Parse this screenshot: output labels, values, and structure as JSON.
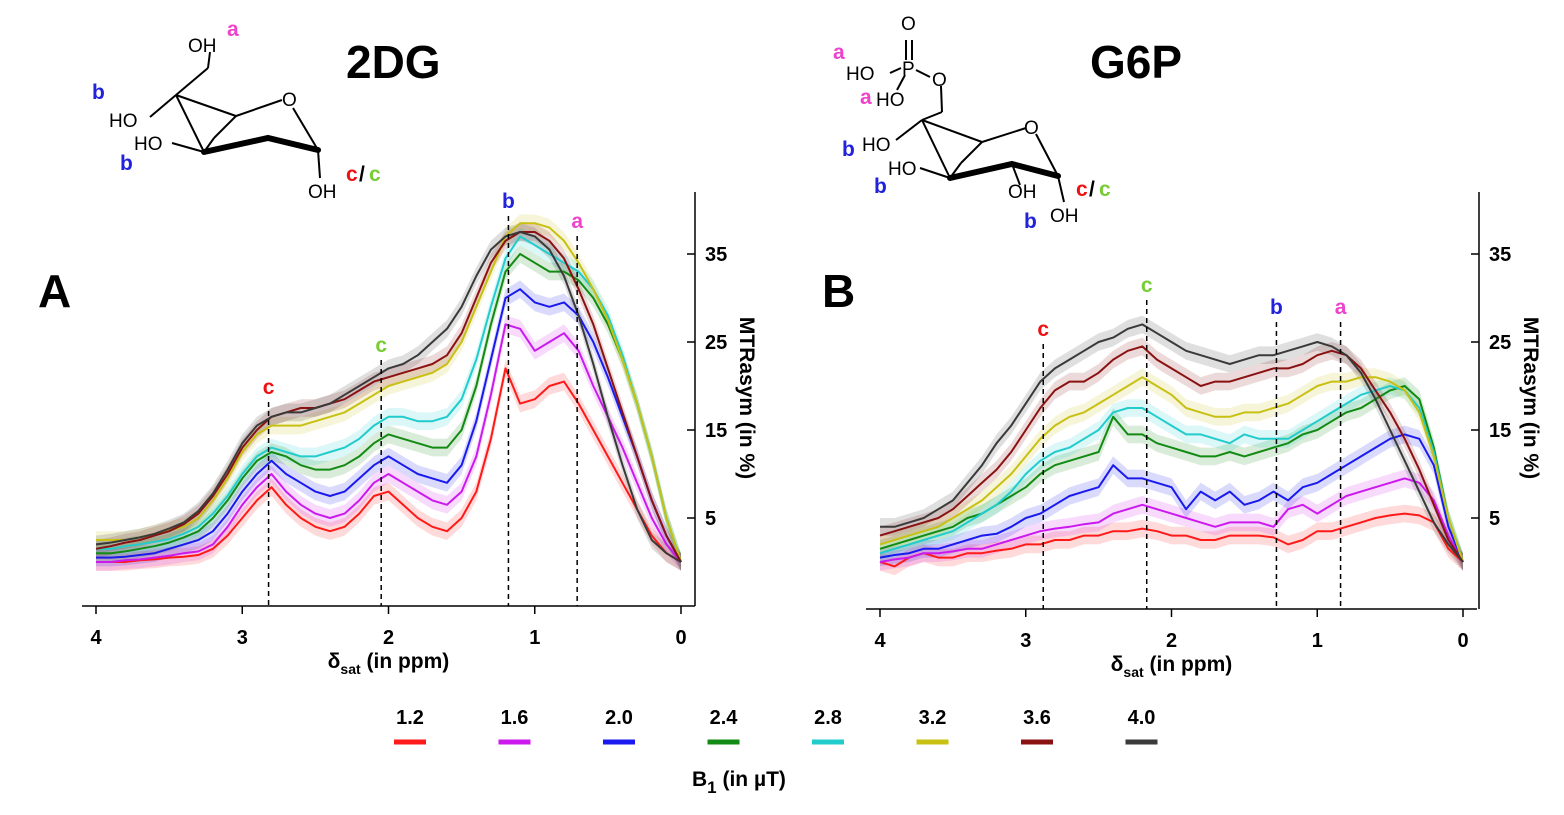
{
  "colors": {
    "1.2": "#ff1a1a",
    "1.6": "#cc1aee",
    "2.0": "#1a1aee",
    "2.4": "#138a13",
    "2.8": "#22cccc",
    "3.2": "#c8c012",
    "3.6": "#8a1212",
    "4.0": "#3a3a3a",
    "peak_a": "#ee44cc",
    "peak_b": "#2222dd",
    "peak_c_red": "#ee1111",
    "peak_c_green": "#77cc33"
  },
  "legend": {
    "title": "B",
    "title_sub": "1",
    "title_unit": " (in µT)",
    "items": [
      "1.2",
      "1.6",
      "2.0",
      "2.4",
      "2.8",
      "3.2",
      "3.6",
      "4.0"
    ]
  },
  "structures": {
    "left": {
      "oh_labels": [
        "OH",
        "HO",
        "HO",
        "OH"
      ],
      "ring_o": "O",
      "slash": "/"
    },
    "right": {
      "oh_labels": [
        "HO",
        "HO",
        "HO",
        "HO",
        "OH",
        "OH"
      ],
      "atom_labels": [
        "O",
        "P",
        "O",
        "O"
      ],
      "slash": "/"
    }
  },
  "chart_data": [
    {
      "type": "line",
      "panel": "A",
      "title": "2DG",
      "xlabel": "δ",
      "xlabel_sub": "sat",
      "xlabel_unit": " (in ppm)",
      "ylabel": "MTRasym (in %)",
      "xlim": [
        4,
        0
      ],
      "ylim": [
        -3,
        40
      ],
      "xticks": [
        "4",
        "3",
        "2",
        "1",
        "0"
      ],
      "yticks": [
        "5",
        "15",
        "25",
        "35"
      ],
      "x": [
        4.0,
        3.9,
        3.8,
        3.7,
        3.6,
        3.5,
        3.4,
        3.3,
        3.2,
        3.1,
        3.0,
        2.9,
        2.8,
        2.7,
        2.6,
        2.5,
        2.4,
        2.3,
        2.2,
        2.1,
        2.0,
        1.9,
        1.8,
        1.7,
        1.6,
        1.5,
        1.4,
        1.3,
        1.2,
        1.1,
        1.0,
        0.9,
        0.8,
        0.7,
        0.6,
        0.5,
        0.4,
        0.3,
        0.2,
        0.1,
        0.0
      ],
      "series": [
        {
          "name": "1.2",
          "values": [
            0.0,
            0.0,
            0.0,
            0.2,
            0.3,
            0.5,
            0.6,
            0.8,
            1.5,
            3.0,
            5.0,
            7.0,
            8.5,
            6.5,
            5.0,
            4.0,
            3.5,
            4.0,
            5.5,
            7.5,
            8.0,
            6.5,
            5.0,
            4.0,
            3.5,
            5.0,
            8.0,
            14.0,
            22.0,
            18.0,
            18.5,
            20.0,
            20.5,
            18.0,
            15.0,
            12.0,
            9.0,
            6.0,
            3.0,
            1.0,
            0.0
          ]
        },
        {
          "name": "1.6",
          "values": [
            0.0,
            0.0,
            0.2,
            0.3,
            0.5,
            0.7,
            1.0,
            1.2,
            2.0,
            4.0,
            6.5,
            8.5,
            10.0,
            8.0,
            6.5,
            5.5,
            5.0,
            5.5,
            7.0,
            9.0,
            10.0,
            9.0,
            8.0,
            7.0,
            6.5,
            8.0,
            12.0,
            19.0,
            27.0,
            26.5,
            24.0,
            25.0,
            26.0,
            24.0,
            20.0,
            16.5,
            13.0,
            9.0,
            5.0,
            2.0,
            0.0
          ]
        },
        {
          "name": "2.0",
          "values": [
            0.5,
            0.5,
            0.6,
            0.8,
            1.0,
            1.5,
            2.0,
            2.5,
            3.5,
            5.5,
            8.0,
            10.0,
            11.5,
            10.0,
            9.0,
            8.0,
            7.5,
            8.0,
            9.5,
            11.0,
            12.0,
            11.0,
            10.0,
            9.5,
            9.0,
            11.0,
            16.0,
            23.0,
            30.0,
            31.0,
            29.5,
            29.0,
            29.5,
            28.0,
            25.0,
            21.0,
            16.5,
            12.0,
            7.0,
            3.0,
            0.0
          ]
        },
        {
          "name": "2.4",
          "values": [
            1.0,
            1.0,
            1.2,
            1.5,
            1.8,
            2.2,
            2.8,
            3.5,
            5.0,
            7.0,
            9.5,
            11.5,
            12.5,
            12.0,
            11.0,
            10.5,
            10.5,
            11.0,
            12.0,
            13.5,
            14.5,
            14.0,
            13.5,
            13.0,
            13.0,
            15.0,
            20.0,
            27.0,
            33.0,
            35.0,
            34.0,
            33.0,
            33.0,
            32.0,
            30.0,
            27.0,
            23.0,
            18.0,
            12.0,
            5.0,
            0.0
          ]
        },
        {
          "name": "2.8",
          "values": [
            1.5,
            1.5,
            1.8,
            2.0,
            2.3,
            2.6,
            3.2,
            4.0,
            5.5,
            7.5,
            10.0,
            12.0,
            13.0,
            12.5,
            12.0,
            12.0,
            12.5,
            13.0,
            14.0,
            15.5,
            16.5,
            16.5,
            16.0,
            16.0,
            16.5,
            18.5,
            23.0,
            29.0,
            34.5,
            37.0,
            36.0,
            35.0,
            34.0,
            33.0,
            31.0,
            28.0,
            23.5,
            18.0,
            12.0,
            5.0,
            0.0
          ]
        },
        {
          "name": "3.2",
          "values": [
            2.5,
            2.5,
            2.5,
            2.8,
            3.2,
            3.6,
            4.0,
            5.0,
            7.0,
            9.5,
            12.5,
            14.5,
            15.5,
            15.5,
            15.5,
            16.0,
            16.5,
            17.0,
            18.0,
            19.0,
            20.0,
            20.5,
            21.0,
            21.5,
            22.5,
            25.0,
            29.0,
            33.0,
            37.0,
            38.5,
            38.5,
            38.0,
            36.5,
            34.0,
            31.0,
            27.5,
            23.0,
            18.0,
            12.0,
            5.0,
            0.0
          ]
        },
        {
          "name": "3.6",
          "values": [
            1.5,
            1.8,
            2.2,
            2.5,
            3.0,
            3.5,
            4.3,
            5.5,
            7.5,
            10.0,
            13.0,
            15.0,
            16.5,
            17.0,
            17.5,
            17.5,
            18.0,
            18.5,
            19.5,
            20.5,
            21.0,
            21.5,
            22.0,
            22.5,
            23.5,
            26.0,
            30.0,
            34.0,
            36.5,
            37.5,
            37.5,
            36.5,
            34.5,
            31.0,
            27.0,
            22.0,
            17.0,
            12.0,
            7.0,
            3.0,
            0.0
          ]
        },
        {
          "name": "4.0",
          "values": [
            2.0,
            2.2,
            2.5,
            2.8,
            3.2,
            3.8,
            4.5,
            5.8,
            7.8,
            10.5,
            13.5,
            15.5,
            16.5,
            17.0,
            17.0,
            17.5,
            18.0,
            19.0,
            20.0,
            21.0,
            22.0,
            22.5,
            23.5,
            25.0,
            26.5,
            29.0,
            32.5,
            35.5,
            37.0,
            37.5,
            37.0,
            35.5,
            32.5,
            28.0,
            22.5,
            16.5,
            11.0,
            6.0,
            2.5,
            1.0,
            0.0
          ]
        }
      ],
      "peaks": [
        {
          "label": "c",
          "x": 2.82,
          "color_key": "peak_c_red"
        },
        {
          "label": "c",
          "x": 2.05,
          "color_key": "peak_c_green"
        },
        {
          "label": "b",
          "x": 1.18,
          "color_key": "peak_b"
        },
        {
          "label": "a",
          "x": 0.71,
          "color_key": "peak_a"
        }
      ]
    },
    {
      "type": "line",
      "panel": "B",
      "title": "G6P",
      "xlabel": "δ",
      "xlabel_sub": "sat",
      "xlabel_unit": " (in ppm)",
      "ylabel": "MTRasym (in %)",
      "xlim": [
        4,
        0
      ],
      "ylim": [
        -3,
        40
      ],
      "xticks": [
        "4",
        "3",
        "2",
        "1",
        "0"
      ],
      "yticks": [
        "5",
        "15",
        "25",
        "35"
      ],
      "x": [
        4.0,
        3.9,
        3.8,
        3.7,
        3.6,
        3.5,
        3.4,
        3.3,
        3.2,
        3.1,
        3.0,
        2.9,
        2.8,
        2.7,
        2.6,
        2.5,
        2.4,
        2.3,
        2.2,
        2.1,
        2.0,
        1.9,
        1.8,
        1.7,
        1.6,
        1.5,
        1.4,
        1.3,
        1.2,
        1.1,
        1.0,
        0.9,
        0.8,
        0.7,
        0.6,
        0.5,
        0.4,
        0.3,
        0.2,
        0.1,
        0.0
      ],
      "series": [
        {
          "name": "1.2",
          "values": [
            0.0,
            -0.5,
            0.5,
            1.0,
            0.5,
            0.5,
            1.0,
            1.0,
            1.3,
            1.5,
            2.0,
            2.0,
            2.5,
            2.5,
            3.0,
            3.0,
            3.5,
            3.5,
            3.8,
            3.5,
            3.0,
            3.0,
            2.5,
            2.5,
            3.0,
            3.0,
            3.0,
            2.8,
            2.0,
            2.5,
            3.5,
            3.5,
            4.0,
            4.5,
            5.0,
            5.3,
            5.5,
            5.3,
            4.5,
            1.5,
            0.0
          ]
        },
        {
          "name": "1.6",
          "values": [
            0.0,
            0.3,
            0.5,
            1.0,
            1.0,
            1.2,
            1.5,
            1.5,
            2.0,
            2.5,
            3.0,
            3.5,
            3.8,
            4.0,
            4.3,
            4.5,
            5.5,
            6.0,
            6.5,
            6.0,
            5.5,
            5.0,
            4.5,
            4.0,
            4.5,
            4.5,
            4.5,
            4.0,
            6.0,
            6.5,
            5.5,
            6.5,
            7.5,
            8.0,
            8.5,
            9.0,
            9.5,
            9.0,
            7.0,
            3.0,
            0.0
          ]
        },
        {
          "name": "2.0",
          "values": [
            0.5,
            0.8,
            1.0,
            1.5,
            1.5,
            2.0,
            2.5,
            3.0,
            3.2,
            4.0,
            5.0,
            5.5,
            6.5,
            7.5,
            8.0,
            8.5,
            11.0,
            9.5,
            9.5,
            9.0,
            8.5,
            6.0,
            8.0,
            7.0,
            8.0,
            6.5,
            7.0,
            8.0,
            7.0,
            8.5,
            9.0,
            10.0,
            11.0,
            12.0,
            13.0,
            14.0,
            14.5,
            14.0,
            11.0,
            4.0,
            0.0
          ]
        },
        {
          "name": "2.4",
          "values": [
            1.5,
            2.0,
            2.5,
            3.0,
            3.5,
            4.0,
            5.0,
            5.5,
            6.5,
            7.5,
            8.5,
            10.0,
            11.0,
            11.5,
            12.0,
            12.5,
            16.5,
            14.5,
            14.5,
            13.5,
            13.0,
            12.5,
            12.0,
            12.0,
            12.5,
            12.0,
            12.5,
            13.0,
            13.5,
            14.5,
            15.0,
            16.0,
            17.0,
            17.5,
            18.5,
            19.5,
            20.0,
            18.5,
            13.0,
            5.0,
            0.0
          ]
        },
        {
          "name": "2.8",
          "values": [
            1.0,
            1.5,
            2.0,
            2.5,
            3.0,
            3.5,
            4.5,
            5.5,
            6.5,
            8.0,
            10.0,
            11.5,
            12.5,
            13.0,
            14.0,
            15.0,
            17.0,
            17.5,
            17.5,
            16.5,
            15.5,
            14.5,
            14.5,
            14.0,
            13.5,
            14.5,
            14.0,
            14.0,
            14.0,
            15.0,
            16.0,
            17.0,
            18.0,
            19.0,
            19.5,
            20.0,
            19.5,
            17.5,
            12.5,
            5.0,
            0.0
          ]
        },
        {
          "name": "3.2",
          "values": [
            2.0,
            2.5,
            3.0,
            3.5,
            4.0,
            5.0,
            6.0,
            7.0,
            8.5,
            10.0,
            12.0,
            14.0,
            15.5,
            16.5,
            17.0,
            18.0,
            19.0,
            20.0,
            21.0,
            20.0,
            19.0,
            17.5,
            17.0,
            16.5,
            16.5,
            17.0,
            17.0,
            17.5,
            18.0,
            19.0,
            20.0,
            20.5,
            20.5,
            21.0,
            21.0,
            20.5,
            19.5,
            17.0,
            12.0,
            5.0,
            0.0
          ]
        },
        {
          "name": "3.6",
          "values": [
            3.0,
            3.5,
            4.0,
            4.5,
            5.0,
            6.0,
            7.5,
            9.0,
            10.5,
            12.5,
            15.0,
            17.5,
            19.5,
            20.5,
            20.5,
            21.5,
            23.0,
            24.0,
            24.5,
            23.0,
            22.0,
            21.0,
            20.0,
            20.5,
            20.5,
            21.0,
            21.5,
            22.0,
            22.0,
            22.5,
            23.5,
            24.0,
            23.5,
            22.0,
            19.5,
            17.0,
            14.0,
            10.5,
            6.5,
            2.5,
            0.0
          ]
        },
        {
          "name": "4.0",
          "values": [
            4.0,
            4.0,
            4.5,
            5.0,
            6.0,
            7.0,
            9.0,
            11.0,
            13.5,
            15.5,
            18.0,
            20.5,
            22.0,
            23.0,
            24.0,
            25.0,
            25.5,
            26.5,
            27.0,
            26.0,
            25.0,
            24.0,
            23.5,
            23.0,
            22.5,
            23.0,
            23.5,
            23.5,
            24.0,
            24.5,
            25.0,
            24.5,
            23.5,
            21.5,
            18.5,
            15.0,
            11.5,
            8.0,
            4.5,
            2.0,
            0.0
          ]
        }
      ],
      "peaks": [
        {
          "label": "c",
          "x": 2.88,
          "color_key": "peak_c_red"
        },
        {
          "label": "c",
          "x": 2.17,
          "color_key": "peak_c_green"
        },
        {
          "label": "b",
          "x": 1.28,
          "color_key": "peak_b"
        },
        {
          "label": "a",
          "x": 0.84,
          "color_key": "peak_a"
        }
      ]
    }
  ]
}
